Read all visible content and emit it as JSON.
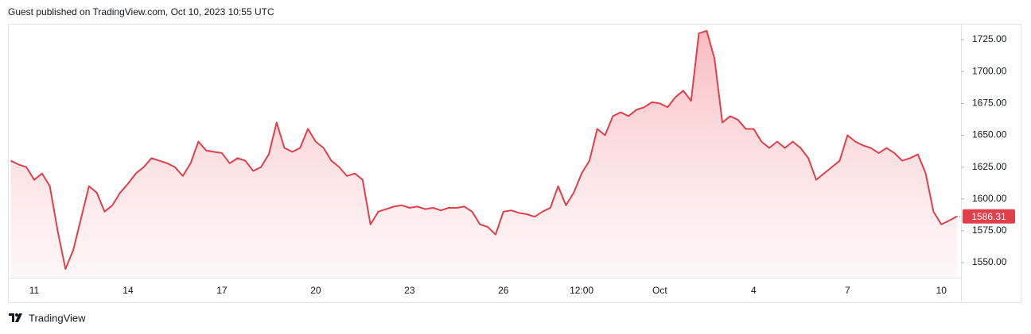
{
  "chart_data": {
    "type": "area",
    "title": "Guest published on TradingView.com, Oct 10, 2023 10:55 UTC",
    "source": "TradingView",
    "categories": [
      null,
      null,
      null,
      "11",
      null,
      null,
      null,
      null,
      null,
      null,
      null,
      null,
      null,
      null,
      null,
      "14",
      null,
      null,
      null,
      null,
      null,
      null,
      null,
      null,
      null,
      null,
      null,
      "17",
      null,
      null,
      null,
      null,
      null,
      null,
      null,
      null,
      null,
      null,
      null,
      "20",
      null,
      null,
      null,
      null,
      null,
      null,
      null,
      null,
      null,
      null,
      null,
      "23",
      null,
      null,
      null,
      null,
      null,
      null,
      null,
      null,
      null,
      null,
      null,
      "26",
      null,
      null,
      null,
      null,
      null,
      null,
      null,
      null,
      null,
      "12:00",
      null,
      null,
      null,
      null,
      null,
      null,
      null,
      null,
      null,
      "Oct",
      null,
      null,
      null,
      null,
      null,
      null,
      null,
      null,
      null,
      null,
      null,
      "4",
      null,
      null,
      null,
      null,
      null,
      null,
      null,
      null,
      null,
      null,
      null,
      "7",
      null,
      null,
      null,
      null,
      null,
      null,
      null,
      null,
      null,
      null,
      null,
      "10",
      null,
      null
    ],
    "series": [
      {
        "color": "#e0404c",
        "values": [
          1630,
          1627,
          1625,
          1615,
          1620,
          1610,
          1575,
          1545,
          1560,
          1585,
          1610,
          1605,
          1590,
          1595,
          1605,
          1612,
          1620,
          1625,
          1632,
          1630,
          1628,
          1625,
          1618,
          1628,
          1645,
          1638,
          1637,
          1636,
          1628,
          1632,
          1630,
          1622,
          1625,
          1635,
          1660,
          1640,
          1637,
          1640,
          1655,
          1645,
          1640,
          1630,
          1625,
          1618,
          1620,
          1615,
          1580,
          1590,
          1592,
          1594,
          1595,
          1593,
          1594,
          1592,
          1593,
          1591,
          1593,
          1593,
          1594,
          1590,
          1580,
          1578,
          1572,
          1590,
          1591,
          1589,
          1588,
          1586,
          1590,
          1593,
          1610,
          1595,
          1605,
          1620,
          1630,
          1655,
          1650,
          1665,
          1668,
          1665,
          1670,
          1672,
          1676,
          1675,
          1672,
          1680,
          1685,
          1677,
          1730,
          1732,
          1710,
          1660,
          1665,
          1662,
          1655,
          1655,
          1645,
          1640,
          1645,
          1640,
          1645,
          1640,
          1632,
          1615,
          1620,
          1625,
          1630,
          1650,
          1645,
          1642,
          1640,
          1636,
          1640,
          1636,
          1630,
          1632,
          1635,
          1620,
          1590,
          1580,
          1583,
          1586.31
        ]
      }
    ],
    "ylim": [
      1538.8,
      1737.5
    ],
    "yticks": [
      {
        "value": 1550,
        "label": "1550.00"
      },
      {
        "value": 1575,
        "label": "1575.00"
      },
      {
        "value": 1600,
        "label": "1600.00"
      },
      {
        "value": 1625,
        "label": "1625.00"
      },
      {
        "value": 1650,
        "label": "1650.00"
      },
      {
        "value": 1675,
        "label": "1675.00"
      },
      {
        "value": 1700,
        "label": "1700.00"
      },
      {
        "value": 1725,
        "label": "1725.00"
      }
    ],
    "grid": false
  }
}
